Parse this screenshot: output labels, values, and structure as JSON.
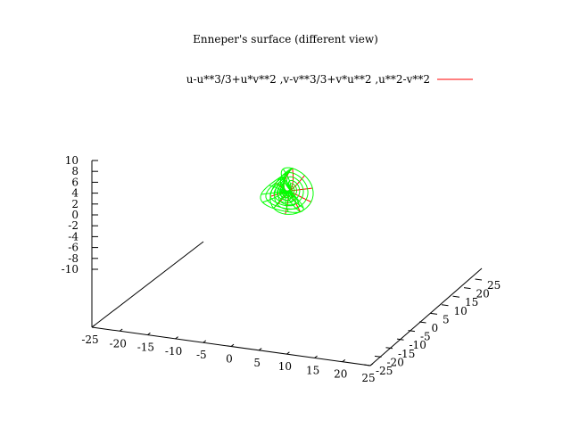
{
  "chart_data": {
    "type": "surface",
    "title": "Enneper's surface (different view)",
    "series": [
      {
        "name": "u-u**3/3+u*v**2 ,v-v**3/3+v*u**2 ,u**2-v**2",
        "x_expr": "u-u**3/3+u*v**2",
        "y_expr": "v-v**3/3+v*u**2",
        "z_expr": "u**2-v**2",
        "color_top": "#ff0000",
        "color_bottom": "#00ff00"
      }
    ],
    "xlim": [
      -25,
      25
    ],
    "ylim": [
      -25,
      25
    ],
    "zlim": [
      -10,
      10
    ],
    "x_ticks": [
      "-25",
      "-20",
      "-15",
      "-10",
      "-5",
      "0",
      "5",
      "10",
      "15",
      "20",
      "25"
    ],
    "y_ticks": [
      "-25",
      "-20",
      "-15",
      "-10",
      "-5",
      "0",
      "5",
      "10",
      "15",
      "20",
      "25"
    ],
    "z_ticks": [
      "-10",
      "-8",
      "-6",
      "-4",
      "-2",
      "0",
      "2",
      "4",
      "6",
      "8",
      "10"
    ],
    "grid": false,
    "legend_position": "top-right"
  }
}
